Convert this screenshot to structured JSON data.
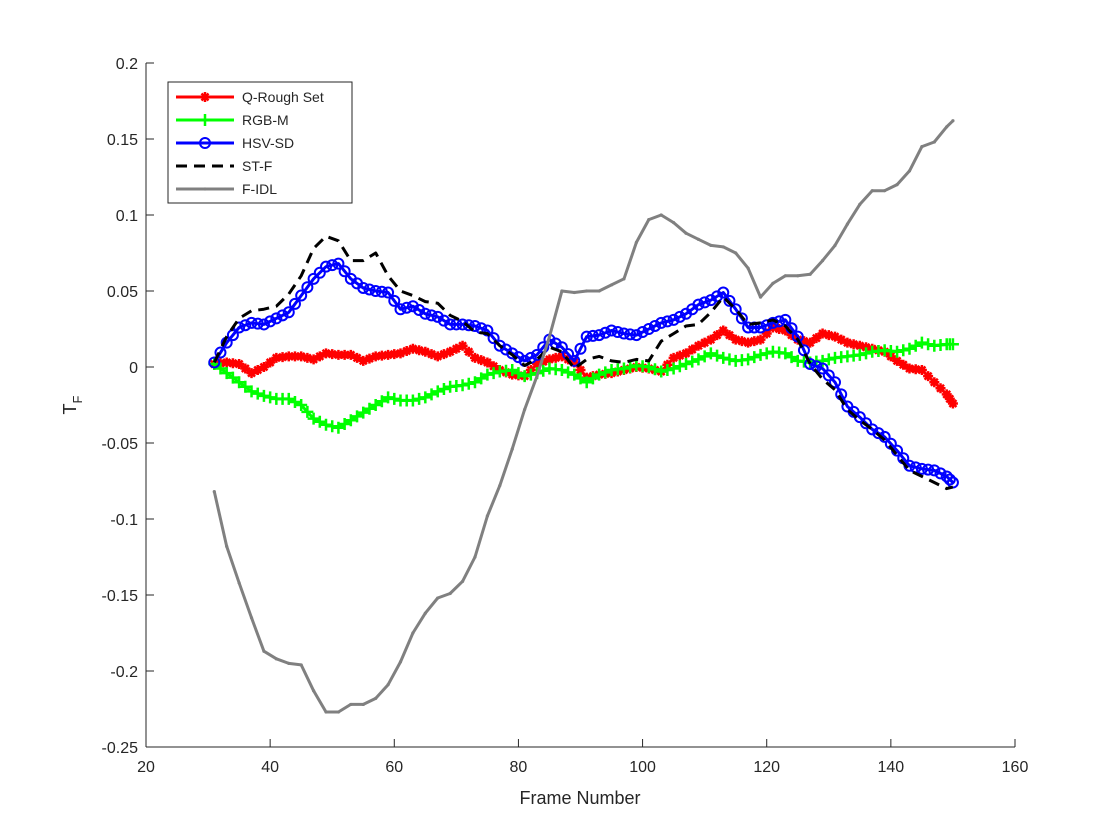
{
  "chart_data": {
    "type": "line",
    "title": "",
    "xlabel": "Frame Number",
    "ylabel_main": "T",
    "ylabel_sub": "F",
    "xlim": [
      20,
      160
    ],
    "ylim": [
      -0.25,
      0.2
    ],
    "xticks": [
      20,
      40,
      60,
      80,
      100,
      120,
      140,
      160
    ],
    "yticks": [
      -0.25,
      -0.2,
      -0.15,
      -0.1,
      -0.05,
      0,
      0.05,
      0.1,
      0.15,
      0.2
    ],
    "xtick_labels": [
      "20",
      "40",
      "60",
      "80",
      "100",
      "120",
      "140",
      "160"
    ],
    "ytick_labels": [
      "-0.25",
      "-0.2",
      "-0.15",
      "-0.1",
      "-0.05",
      "0",
      "0.05",
      "0.1",
      "0.15",
      "0.2"
    ],
    "grid": false,
    "legend_position": "top-left",
    "series": [
      {
        "name": "Q-Rough Set",
        "color": "#ff0000",
        "marker": "asterisk",
        "line_style": "solid",
        "x": [
          31,
          33,
          35,
          37,
          39,
          41,
          43,
          45,
          47,
          49,
          51,
          53,
          55,
          57,
          59,
          61,
          63,
          65,
          67,
          69,
          71,
          73,
          75,
          77,
          79,
          81,
          83,
          85,
          87,
          89,
          91,
          93,
          95,
          97,
          99,
          101,
          103,
          105,
          107,
          109,
          111,
          113,
          115,
          117,
          119,
          121,
          123,
          125,
          127,
          129,
          131,
          133,
          135,
          137,
          139,
          141,
          143,
          145,
          147,
          149,
          150
        ],
        "y": [
          0.002,
          0.003,
          0.002,
          -0.004,
          0.0,
          0.006,
          0.007,
          0.007,
          0.005,
          0.009,
          0.008,
          0.008,
          0.004,
          0.007,
          0.008,
          0.009,
          0.012,
          0.01,
          0.007,
          0.01,
          0.014,
          0.006,
          0.003,
          -0.002,
          -0.005,
          -0.006,
          0.002,
          0.005,
          0.007,
          0.003,
          -0.007,
          -0.005,
          -0.004,
          -0.002,
          0.0,
          -0.001,
          -0.003,
          0.006,
          0.009,
          0.014,
          0.018,
          0.024,
          0.018,
          0.016,
          0.018,
          0.026,
          0.024,
          0.018,
          0.016,
          0.022,
          0.02,
          0.016,
          0.014,
          0.012,
          0.01,
          0.004,
          -0.001,
          -0.002,
          -0.01,
          -0.018,
          -0.024
        ]
      },
      {
        "name": "RGB-M",
        "color": "#00ff00",
        "marker": "plus",
        "line_style": "solid",
        "x": [
          31,
          33,
          35,
          37,
          39,
          41,
          43,
          45,
          47,
          49,
          51,
          53,
          55,
          57,
          59,
          61,
          63,
          65,
          67,
          69,
          71,
          73,
          75,
          77,
          79,
          81,
          83,
          85,
          87,
          89,
          91,
          93,
          95,
          97,
          99,
          101,
          103,
          105,
          107,
          109,
          111,
          113,
          115,
          117,
          119,
          121,
          123,
          125,
          127,
          129,
          131,
          133,
          135,
          137,
          139,
          141,
          143,
          145,
          147,
          149,
          150
        ],
        "y": [
          0.002,
          -0.004,
          -0.01,
          -0.016,
          -0.019,
          -0.021,
          -0.021,
          -0.025,
          -0.034,
          -0.038,
          -0.04,
          -0.035,
          -0.03,
          -0.025,
          -0.02,
          -0.022,
          -0.022,
          -0.02,
          -0.016,
          -0.013,
          -0.012,
          -0.01,
          -0.005,
          -0.003,
          -0.002,
          -0.006,
          -0.004,
          -0.001,
          -0.002,
          -0.005,
          -0.01,
          -0.005,
          -0.002,
          -0.001,
          0.001,
          0.0,
          -0.003,
          -0.001,
          0.002,
          0.005,
          0.009,
          0.006,
          0.004,
          0.005,
          0.008,
          0.01,
          0.009,
          0.004,
          0.003,
          0.004,
          0.006,
          0.007,
          0.008,
          0.01,
          0.011,
          0.01,
          0.012,
          0.016,
          0.014,
          0.015,
          0.015
        ]
      },
      {
        "name": "HSV-SD",
        "color": "#0000ff",
        "marker": "circle",
        "line_style": "solid",
        "x": [
          31,
          33,
          35,
          37,
          39,
          41,
          43,
          45,
          47,
          49,
          51,
          53,
          55,
          57,
          59,
          61,
          63,
          65,
          67,
          69,
          71,
          73,
          75,
          77,
          79,
          81,
          83,
          85,
          87,
          89,
          91,
          93,
          95,
          97,
          99,
          101,
          103,
          105,
          107,
          109,
          111,
          113,
          115,
          117,
          119,
          121,
          123,
          125,
          127,
          129,
          131,
          133,
          135,
          137,
          139,
          141,
          143,
          145,
          147,
          149,
          150
        ],
        "y": [
          0.003,
          0.016,
          0.026,
          0.029,
          0.028,
          0.032,
          0.036,
          0.047,
          0.058,
          0.066,
          0.068,
          0.058,
          0.052,
          0.05,
          0.049,
          0.038,
          0.04,
          0.035,
          0.033,
          0.028,
          0.028,
          0.027,
          0.024,
          0.014,
          0.009,
          0.004,
          0.008,
          0.018,
          0.013,
          0.004,
          0.02,
          0.021,
          0.024,
          0.022,
          0.021,
          0.025,
          0.029,
          0.031,
          0.035,
          0.041,
          0.044,
          0.049,
          0.038,
          0.026,
          0.026,
          0.029,
          0.031,
          0.02,
          0.002,
          -0.001,
          -0.01,
          -0.026,
          -0.033,
          -0.041,
          -0.046,
          -0.055,
          -0.065,
          -0.067,
          -0.068,
          -0.072,
          -0.076
        ]
      },
      {
        "name": "ST-F",
        "color": "#000000",
        "marker": "none",
        "line_style": "dashed",
        "x": [
          31,
          33,
          35,
          37,
          39,
          41,
          43,
          45,
          47,
          49,
          51,
          53,
          55,
          57,
          59,
          61,
          63,
          65,
          67,
          69,
          71,
          73,
          75,
          77,
          79,
          81,
          83,
          85,
          87,
          89,
          91,
          93,
          95,
          97,
          99,
          101,
          103,
          105,
          107,
          109,
          111,
          113,
          115,
          117,
          119,
          121,
          123,
          125,
          127,
          129,
          131,
          133,
          135,
          137,
          139,
          141,
          143,
          145,
          147,
          149,
          150
        ],
        "y": [
          0.003,
          0.02,
          0.032,
          0.037,
          0.038,
          0.04,
          0.048,
          0.06,
          0.078,
          0.086,
          0.083,
          0.07,
          0.07,
          0.075,
          0.06,
          0.05,
          0.047,
          0.043,
          0.042,
          0.034,
          0.03,
          0.023,
          0.022,
          0.014,
          0.008,
          0.001,
          0.005,
          0.013,
          0.01,
          -0.001,
          0.005,
          0.007,
          0.004,
          0.003,
          0.005,
          0.004,
          0.017,
          0.022,
          0.027,
          0.028,
          0.036,
          0.046,
          0.038,
          0.028,
          0.029,
          0.031,
          0.027,
          0.018,
          0.002,
          -0.008,
          -0.015,
          -0.028,
          -0.035,
          -0.041,
          -0.048,
          -0.058,
          -0.068,
          -0.072,
          -0.076,
          -0.08,
          -0.079
        ]
      },
      {
        "name": "F-IDL",
        "color": "#808080",
        "marker": "point",
        "line_style": "solid",
        "x": [
          31,
          33,
          35,
          37,
          39,
          41,
          43,
          45,
          47,
          49,
          51,
          53,
          55,
          57,
          59,
          61,
          63,
          65,
          67,
          69,
          71,
          73,
          75,
          77,
          79,
          81,
          83,
          85,
          87,
          89,
          91,
          93,
          95,
          97,
          99,
          101,
          103,
          105,
          107,
          109,
          111,
          113,
          115,
          117,
          119,
          121,
          123,
          125,
          127,
          129,
          131,
          133,
          135,
          137,
          139,
          141,
          143,
          145,
          147,
          149,
          150
        ],
        "y": [
          -0.082,
          -0.118,
          -0.142,
          -0.165,
          -0.187,
          -0.192,
          -0.195,
          -0.196,
          -0.213,
          -0.227,
          -0.227,
          -0.222,
          -0.222,
          -0.218,
          -0.209,
          -0.194,
          -0.175,
          -0.162,
          -0.152,
          -0.149,
          -0.141,
          -0.125,
          -0.098,
          -0.078,
          -0.054,
          -0.028,
          -0.006,
          0.02,
          0.05,
          0.049,
          0.05,
          0.05,
          0.054,
          0.058,
          0.082,
          0.097,
          0.1,
          0.095,
          0.088,
          0.084,
          0.08,
          0.079,
          0.075,
          0.065,
          0.046,
          0.055,
          0.06,
          0.06,
          0.061,
          0.07,
          0.08,
          0.094,
          0.107,
          0.116,
          0.116,
          0.12,
          0.129,
          0.145,
          0.148,
          0.158,
          0.162
        ]
      }
    ]
  }
}
